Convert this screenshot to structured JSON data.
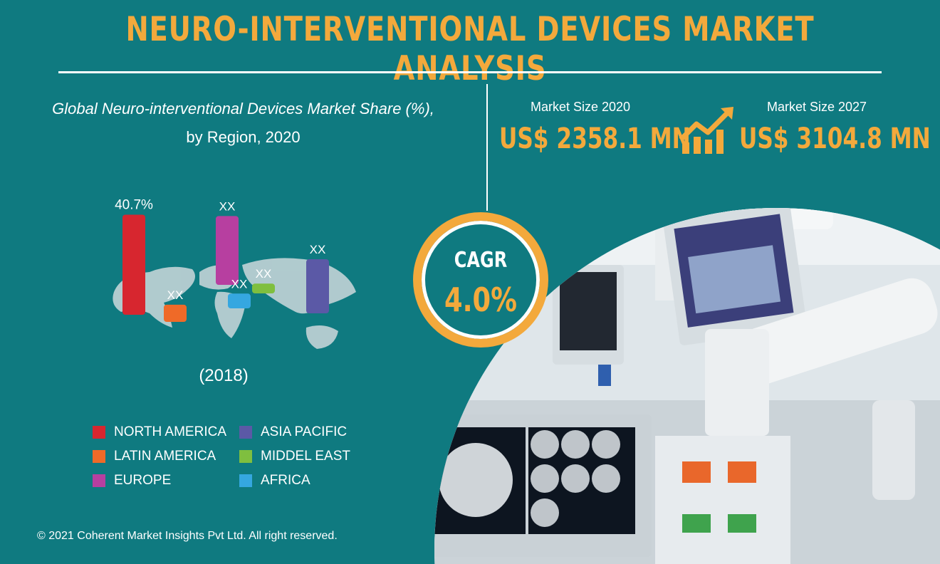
{
  "title": "NEURO-INTERVENTIONAL DEVICES MARKET ANALYSIS",
  "subtitle_line1": "Global Neuro-interventional Devices Market Share (%),",
  "subtitle_line2": "by Region, 2020",
  "market_size": {
    "label_2020": "Market Size 2020",
    "value_2020": "US$ 2358.1 MN",
    "label_2027": "Market Size 2027",
    "value_2027": "US$ 3104.8 MN"
  },
  "cagr": {
    "label": "CAGR",
    "value": "4.0%"
  },
  "year_note": "(2018)",
  "copyright": "© 2021 Coherent Market Insights Pvt Ltd. All right reserved.",
  "colors": {
    "background": "#0f7a80",
    "accent": "#f3a93c",
    "north_america": "#d7262f",
    "latin_america": "#ef6a28",
    "europe": "#b73fa0",
    "asia_pacific": "#5b59a6",
    "middle_east": "#7fbf3f",
    "africa": "#35a7e0"
  },
  "icons": {
    "growth": "growth-chart-arrow-icon",
    "map": "world-map-icon"
  },
  "chart_data": {
    "type": "bar",
    "categories": [
      "NORTH AMERICA",
      "LATIN AMERICA",
      "EUROPE",
      "MIDDEL EAST",
      "AFRICA",
      "ASIA PACIFIC"
    ],
    "values": [
      40.7,
      7,
      28,
      4,
      6,
      22
    ],
    "value_labels": [
      "40.7%",
      "XX",
      "XX",
      "XX",
      "XX",
      "XX"
    ],
    "bar_colors": [
      "#d7262f",
      "#ef6a28",
      "#b73fa0",
      "#7fbf3f",
      "#35a7e0",
      "#5b59a6"
    ],
    "ylim": [
      0,
      42
    ],
    "grid": false
  },
  "legend": [
    {
      "label": "NORTH AMERICA",
      "color": "#d7262f"
    },
    {
      "label": "LATIN AMERICA",
      "color": "#ef6a28"
    },
    {
      "label": "EUROPE",
      "color": "#b73fa0"
    },
    {
      "label": "ASIA PACIFIC",
      "color": "#5b59a6"
    },
    {
      "label": "MIDDEL EAST",
      "color": "#7fbf3f"
    },
    {
      "label": "AFRICA",
      "color": "#35a7e0"
    }
  ]
}
